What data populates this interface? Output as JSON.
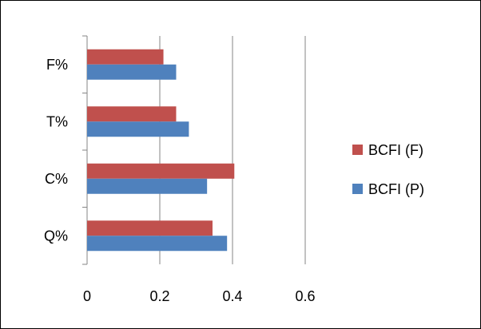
{
  "chart_data": {
    "type": "bar",
    "orientation": "horizontal",
    "categories": [
      "Q%",
      "C%",
      "T%",
      "F%"
    ],
    "series": [
      {
        "name": "BCFI (P)",
        "color": "#4F81BD",
        "values": [
          0.385,
          0.33,
          0.28,
          0.245
        ]
      },
      {
        "name": "BCFI (F)",
        "color": "#C0504D",
        "values": [
          0.345,
          0.405,
          0.245,
          0.21
        ]
      }
    ],
    "xlim": [
      0,
      0.6
    ],
    "xticks": [
      "0",
      "0.2",
      "0.4",
      "0.6"
    ],
    "grid": "vertical major gridlines",
    "legend": "right",
    "title": "",
    "xlabel": "",
    "ylabel": ""
  }
}
